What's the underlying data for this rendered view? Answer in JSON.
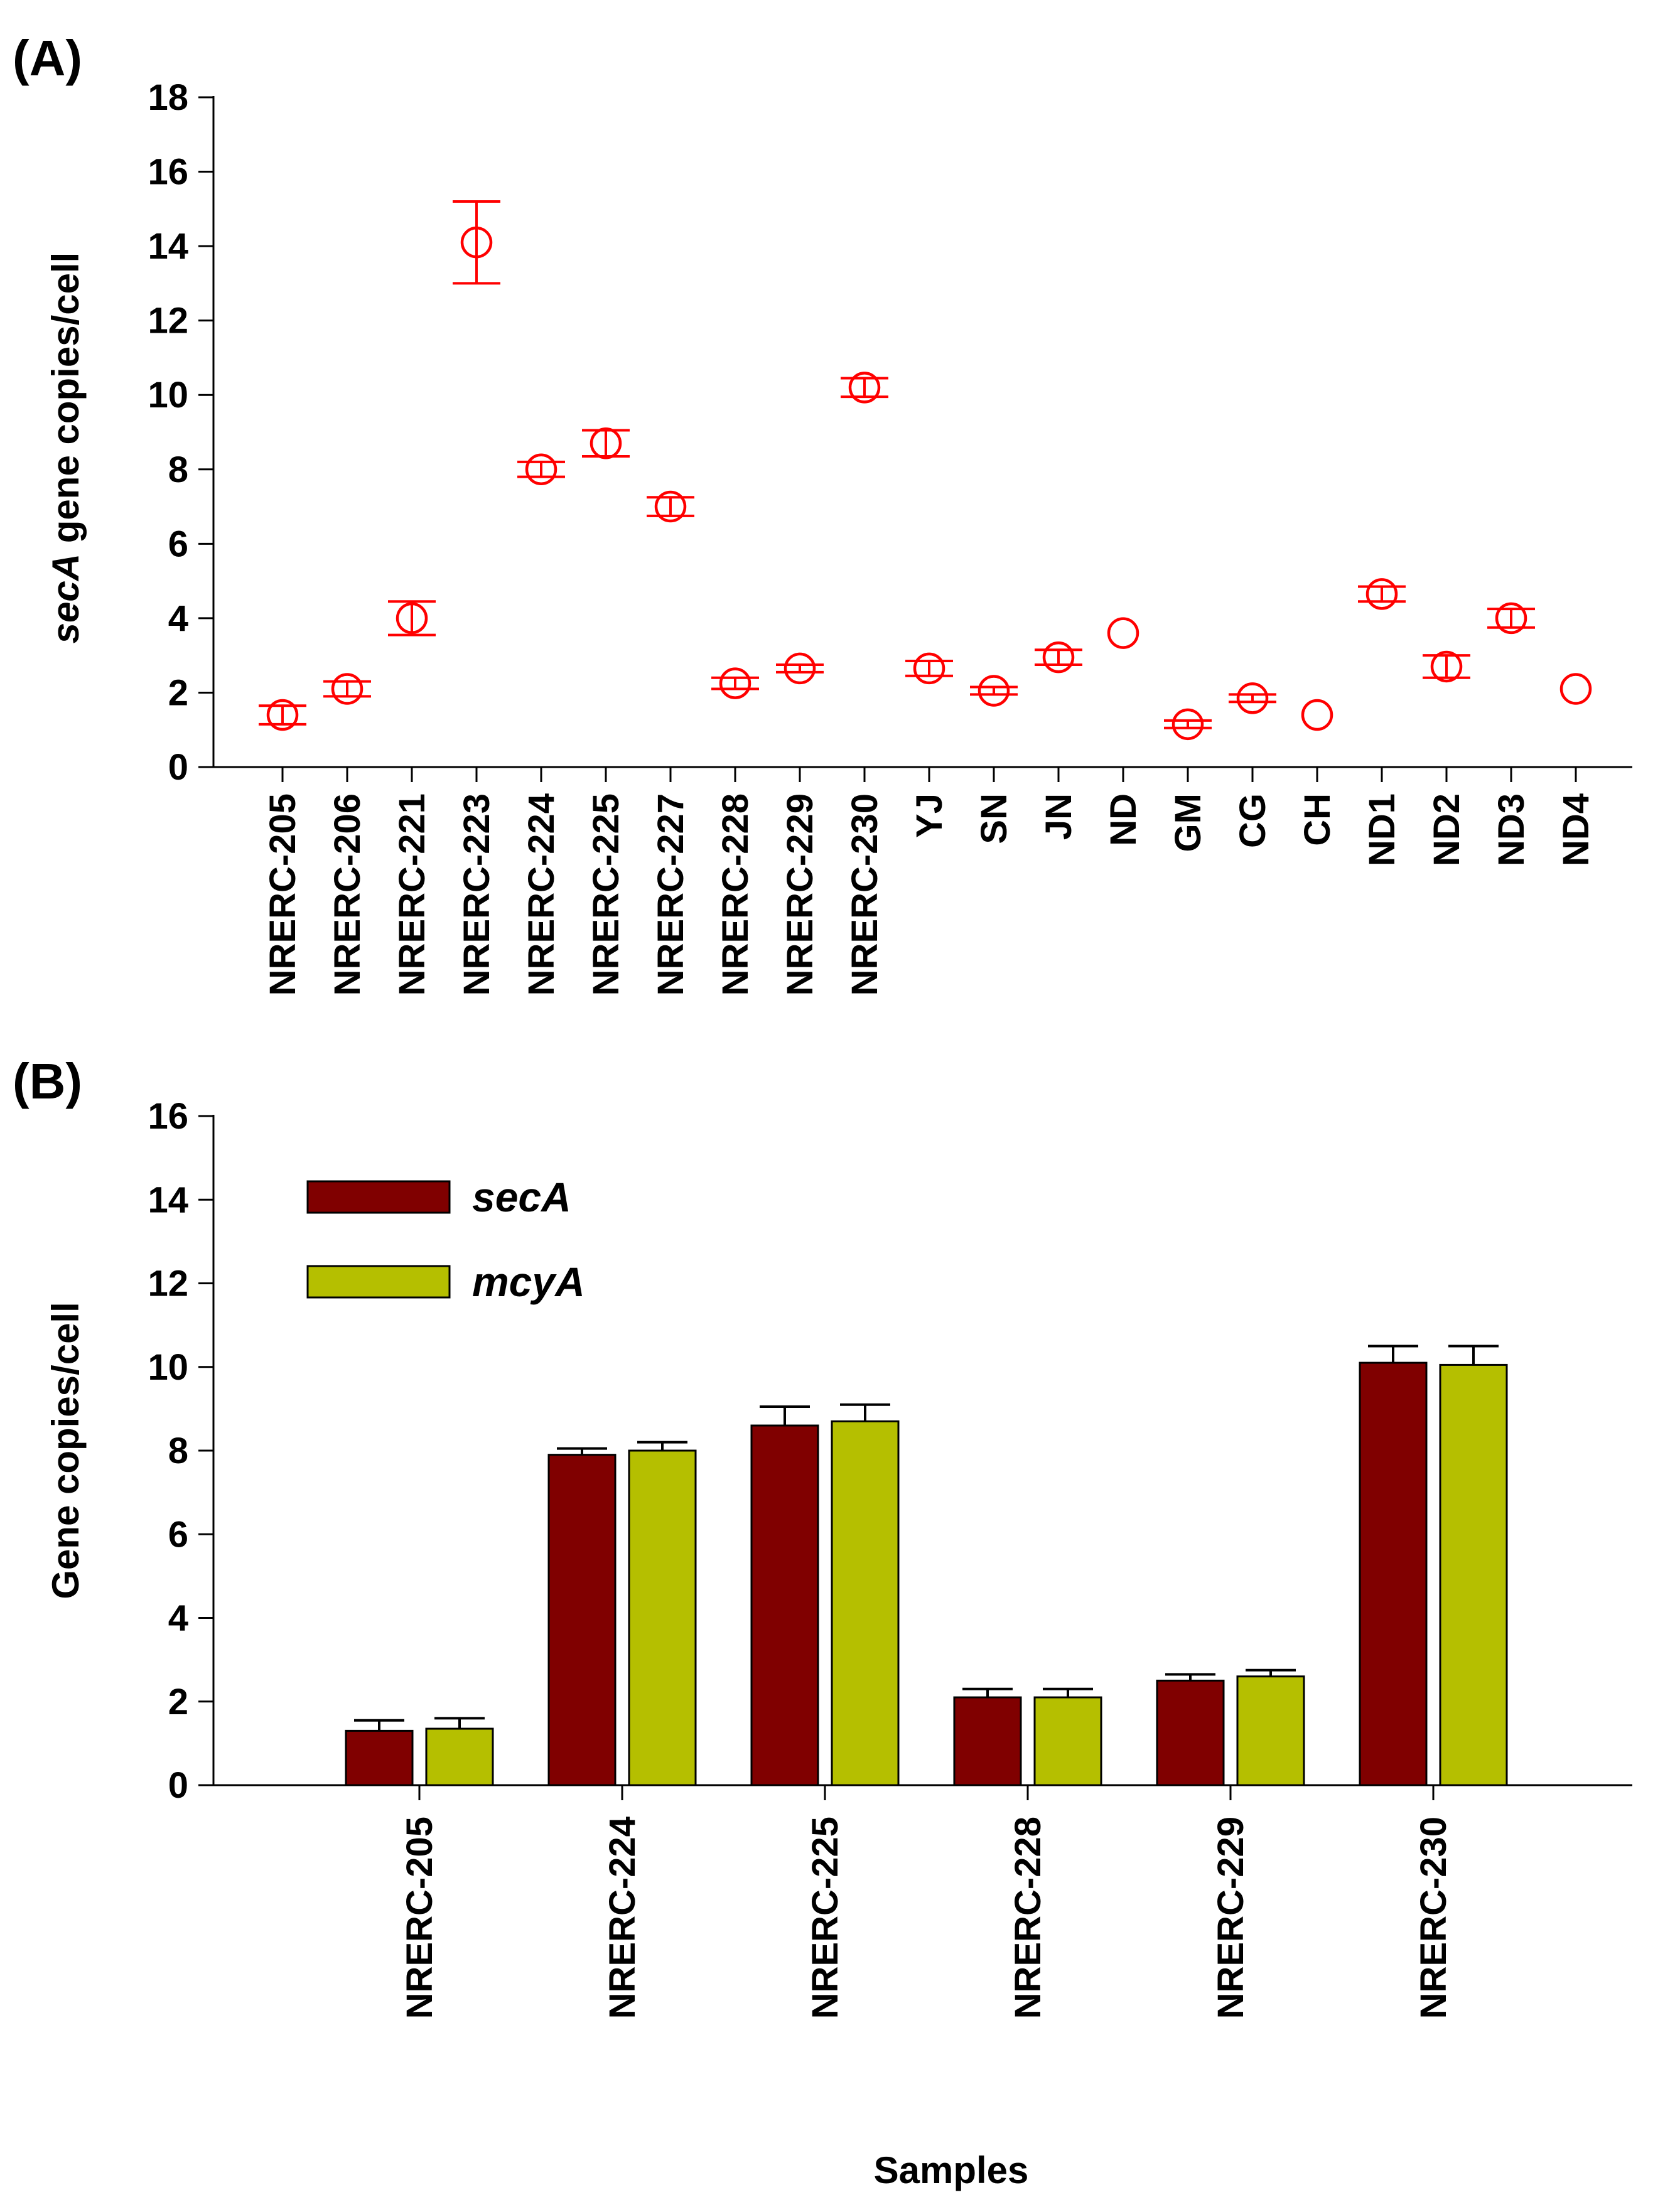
{
  "chart_data": [
    {
      "panel": "(A)",
      "type": "scatter",
      "ylabel": {
        "italic": "secA",
        "rest": " gene copies/cell"
      },
      "xlabel": "",
      "ylim": [
        0,
        18
      ],
      "yticks": [
        0,
        2,
        4,
        6,
        8,
        10,
        12,
        14,
        16,
        18
      ],
      "categories": [
        "NRERC-205",
        "NRERC-206",
        "NRERC-221",
        "NRERC-223",
        "NRERC-224",
        "NRERC-225",
        "NRERC-227",
        "NRERC-228",
        "NRERC-229",
        "NRERC-230",
        "YJ",
        "SN",
        "JN",
        "ND",
        "GM",
        "CG",
        "CH",
        "ND1",
        "ND2",
        "ND3",
        "ND4"
      ],
      "values": [
        1.4,
        2.1,
        4.0,
        14.1,
        8.0,
        8.7,
        7.0,
        2.25,
        2.65,
        10.2,
        2.65,
        2.05,
        2.95,
        3.6,
        1.15,
        1.85,
        1.4,
        4.65,
        2.7,
        4.0,
        2.1
      ],
      "errors": [
        0.25,
        0.2,
        0.45,
        1.1,
        0.2,
        0.35,
        0.25,
        0.15,
        0.1,
        0.25,
        0.2,
        0.1,
        0.2,
        0.0,
        0.1,
        0.1,
        0.0,
        0.2,
        0.3,
        0.25,
        0.0
      ],
      "marker_color": "#ff0000",
      "grid": false
    },
    {
      "panel": "(B)",
      "type": "bar",
      "ylabel": "Gene copies/cell",
      "xlabel": "Samples",
      "ylim": [
        0,
        16
      ],
      "yticks": [
        0,
        2,
        4,
        6,
        8,
        10,
        12,
        14,
        16
      ],
      "categories": [
        "NRERC-205",
        "NRERC-224",
        "NRERC-225",
        "NRERC-228",
        "NRERC-229",
        "NRERC-230"
      ],
      "series": [
        {
          "name": "secA",
          "color": "#800000",
          "values": [
            1.3,
            7.9,
            8.6,
            2.1,
            2.5,
            10.1
          ],
          "errors": [
            0.25,
            0.15,
            0.45,
            0.2,
            0.15,
            0.4
          ]
        },
        {
          "name": "mcyA",
          "color": "#b5bf00",
          "values": [
            1.35,
            8.0,
            8.7,
            2.1,
            2.6,
            10.05
          ],
          "errors": [
            0.25,
            0.2,
            0.4,
            0.2,
            0.15,
            0.45
          ]
        }
      ],
      "legend": "top-left",
      "grid": false
    }
  ]
}
